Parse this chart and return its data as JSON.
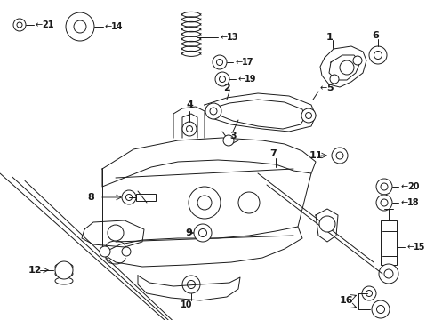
{
  "bg_color": "#ffffff",
  "line_color": "#1a1a1a",
  "fig_width": 4.89,
  "fig_height": 3.6,
  "dpi": 100,
  "lw": 0.7,
  "fs": 7.0
}
